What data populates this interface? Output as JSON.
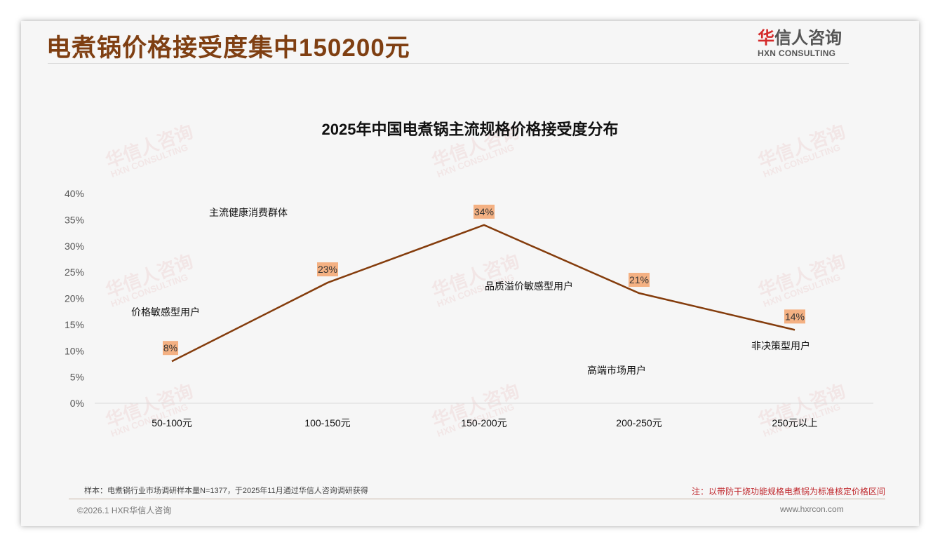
{
  "header": {
    "title": "电煮锅价格接受度集中150200元",
    "logo_cn_red": "华",
    "logo_cn": "信人咨询",
    "logo_en": "HXN CONSULTING"
  },
  "watermark": {
    "cn": "华信人咨询",
    "en": "HXN CONSULTING"
  },
  "chart_data": {
    "type": "line",
    "title": "2025年中国电煮锅主流规格价格接受度分布",
    "categories": [
      "50-100元",
      "100-150元",
      "150-200元",
      "200-250元",
      "250元以上"
    ],
    "values": [
      8,
      23,
      34,
      21,
      14
    ],
    "data_labels": [
      "8%",
      "23%",
      "34%",
      "21%",
      "14%"
    ],
    "ylim": [
      0,
      40
    ],
    "yticks": [
      "0%",
      "5%",
      "10%",
      "15%",
      "20%",
      "25%",
      "30%",
      "35%",
      "40%"
    ],
    "line_color": "#843c0c",
    "label_bg": "#f4b183",
    "annotations": [
      "主流健康消费群体",
      "价格敏感型用户",
      "品质溢价敏感型用户",
      "高端市场用户",
      "非决策型用户"
    ]
  },
  "footer": {
    "sample": "样本：电煮锅行业市场调研样本量N=1377，于2025年11月通过华信人咨询调研获得",
    "note": "注：以带防干烧功能规格电煮锅为标准核定价格区间",
    "copyright": "©2026.1 HXR华信人咨询",
    "url": "www.hxrcon.com"
  }
}
